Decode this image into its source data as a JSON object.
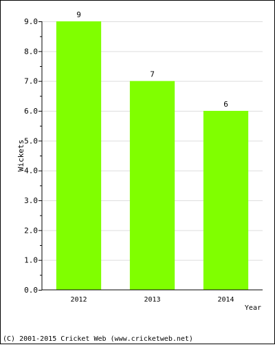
{
  "chart_data": {
    "type": "bar",
    "categories": [
      "2012",
      "2013",
      "2014"
    ],
    "values": [
      9,
      7,
      6
    ],
    "data_labels": [
      "9",
      "7",
      "6"
    ],
    "xlabel": "Year",
    "ylabel": "Wickets",
    "ylim": [
      0,
      9
    ],
    "yticks": [
      "0.0",
      "1.0",
      "2.0",
      "3.0",
      "4.0",
      "5.0",
      "6.0",
      "7.0",
      "8.0",
      "9.0"
    ],
    "grid": true,
    "bar_color": "#80ff00",
    "grid_color": "#dddddd"
  },
  "footer": {
    "copyright": "(C) 2001-2015 Cricket Web (www.cricketweb.net)"
  }
}
